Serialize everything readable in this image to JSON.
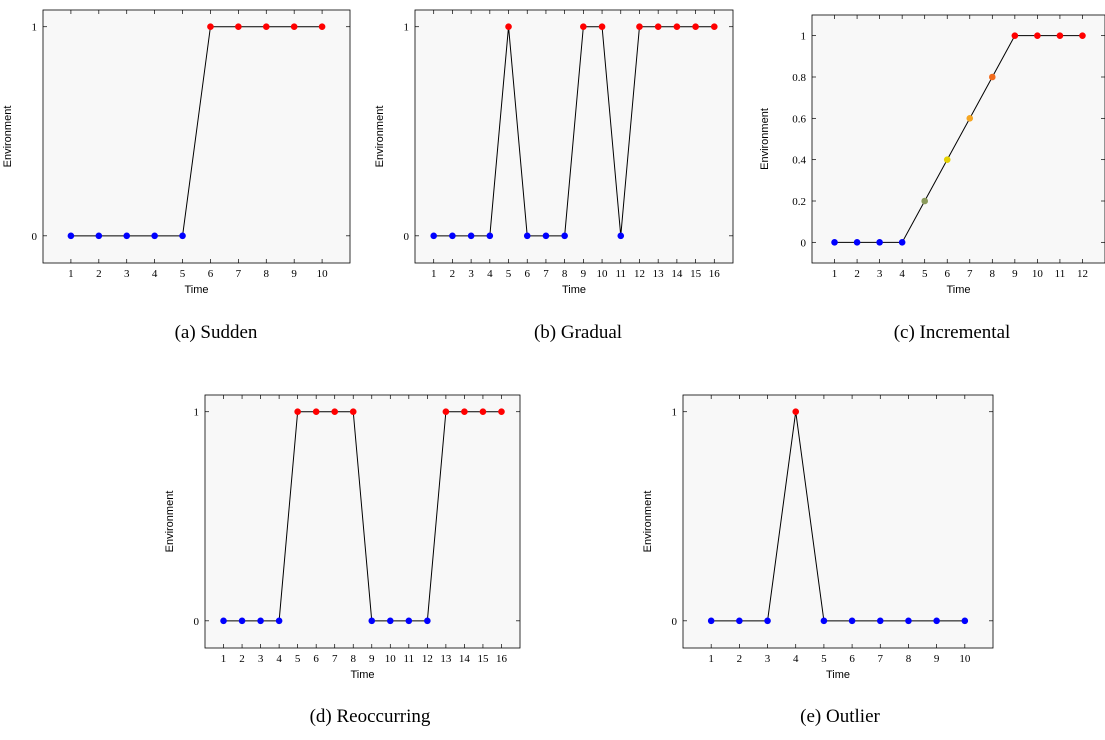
{
  "chart_data": [
    {
      "type": "line",
      "caption": "(a) Sudden",
      "xlabel": "Time",
      "ylabel": "Environment",
      "x": [
        1,
        2,
        3,
        4,
        5,
        6,
        7,
        8,
        9,
        10
      ],
      "y": [
        0,
        0,
        0,
        0,
        0,
        1,
        1,
        1,
        1,
        1
      ],
      "point_colors": [
        "#0000ff",
        "#0000ff",
        "#0000ff",
        "#0000ff",
        "#0000ff",
        "#ff0000",
        "#ff0000",
        "#ff0000",
        "#ff0000",
        "#ff0000"
      ],
      "xticks": [
        "1",
        "2",
        "3",
        "4",
        "5",
        "6",
        "7",
        "8",
        "9",
        "10"
      ],
      "yticks": [
        0,
        1
      ],
      "ytick_labels": [
        "0",
        "1"
      ],
      "xlim": [
        0,
        11
      ],
      "ylim": [
        -0.13,
        1.08
      ]
    },
    {
      "type": "line",
      "caption": "(b) Gradual",
      "xlabel": "Time",
      "ylabel": "Environment",
      "x": [
        1,
        2,
        3,
        4,
        5,
        6,
        7,
        8,
        9,
        10,
        11,
        12,
        13,
        14,
        15,
        16
      ],
      "y": [
        0,
        0,
        0,
        0,
        1,
        0,
        0,
        0,
        1,
        1,
        0,
        1,
        1,
        1,
        1,
        1
      ],
      "point_colors": [
        "#0000ff",
        "#0000ff",
        "#0000ff",
        "#0000ff",
        "#ff0000",
        "#0000ff",
        "#0000ff",
        "#0000ff",
        "#ff0000",
        "#ff0000",
        "#0000ff",
        "#ff0000",
        "#ff0000",
        "#ff0000",
        "#ff0000",
        "#ff0000"
      ],
      "xticks": [
        "1",
        "2",
        "3",
        "4",
        "5",
        "6",
        "7",
        "8",
        "9",
        "10",
        "11",
        "12",
        "13",
        "14",
        "15",
        "16"
      ],
      "yticks": [
        0,
        1
      ],
      "ytick_labels": [
        "0",
        "1"
      ],
      "xlim": [
        0,
        17
      ],
      "ylim": [
        -0.13,
        1.08
      ]
    },
    {
      "type": "line",
      "caption": "(c) Incremental",
      "xlabel": "Time",
      "ylabel": "Environment",
      "x": [
        1,
        2,
        3,
        4,
        5,
        6,
        7,
        8,
        9,
        10,
        11,
        12
      ],
      "y": [
        0,
        0,
        0,
        0,
        0.2,
        0.4,
        0.6,
        0.8,
        1,
        1,
        1,
        1
      ],
      "point_colors": [
        "#0000ff",
        "#0000ff",
        "#0000ff",
        "#0000ff",
        "#8a9a5b",
        "#e6d200",
        "#f5a623",
        "#f26b1d",
        "#ff0000",
        "#ff0000",
        "#ff0000",
        "#ff0000"
      ],
      "xticks": [
        "1",
        "2",
        "3",
        "4",
        "5",
        "6",
        "7",
        "8",
        "9",
        "10",
        "11",
        "12"
      ],
      "yticks": [
        0,
        0.2,
        0.4,
        0.6,
        0.8,
        1
      ],
      "ytick_labels": [
        "0",
        "0.2",
        "0.4",
        "0.6",
        "0.8",
        "1"
      ],
      "xlim": [
        0,
        13
      ],
      "ylim": [
        -0.1,
        1.1
      ]
    },
    {
      "type": "line",
      "caption": "(d) Reoccurring",
      "xlabel": "Time",
      "ylabel": "Environment",
      "x": [
        1,
        2,
        3,
        4,
        5,
        6,
        7,
        8,
        9,
        10,
        11,
        12,
        13,
        14,
        15,
        16
      ],
      "y": [
        0,
        0,
        0,
        0,
        1,
        1,
        1,
        1,
        0,
        0,
        0,
        0,
        1,
        1,
        1,
        1
      ],
      "point_colors": [
        "#0000ff",
        "#0000ff",
        "#0000ff",
        "#0000ff",
        "#ff0000",
        "#ff0000",
        "#ff0000",
        "#ff0000",
        "#0000ff",
        "#0000ff",
        "#0000ff",
        "#0000ff",
        "#ff0000",
        "#ff0000",
        "#ff0000",
        "#ff0000"
      ],
      "xticks": [
        "1",
        "2",
        "3",
        "4",
        "5",
        "6",
        "7",
        "8",
        "9",
        "10",
        "11",
        "12",
        "13",
        "14",
        "15",
        "16"
      ],
      "yticks": [
        0,
        1
      ],
      "ytick_labels": [
        "0",
        "1"
      ],
      "xlim": [
        0,
        17
      ],
      "ylim": [
        -0.13,
        1.08
      ]
    },
    {
      "type": "line",
      "caption": "(e) Outlier",
      "xlabel": "Time",
      "ylabel": "Environment",
      "x": [
        1,
        2,
        3,
        4,
        5,
        6,
        7,
        8,
        9,
        10
      ],
      "y": [
        0,
        0,
        0,
        1,
        0,
        0,
        0,
        0,
        0,
        0
      ],
      "point_colors": [
        "#0000ff",
        "#0000ff",
        "#0000ff",
        "#ff0000",
        "#0000ff",
        "#0000ff",
        "#0000ff",
        "#0000ff",
        "#0000ff",
        "#0000ff"
      ],
      "xticks": [
        "1",
        "2",
        "3",
        "4",
        "5",
        "6",
        "7",
        "8",
        "9",
        "10"
      ],
      "yticks": [
        0,
        1
      ],
      "ytick_labels": [
        "0",
        "1"
      ],
      "xlim": [
        0,
        11
      ],
      "ylim": [
        -0.13,
        1.08
      ]
    }
  ]
}
